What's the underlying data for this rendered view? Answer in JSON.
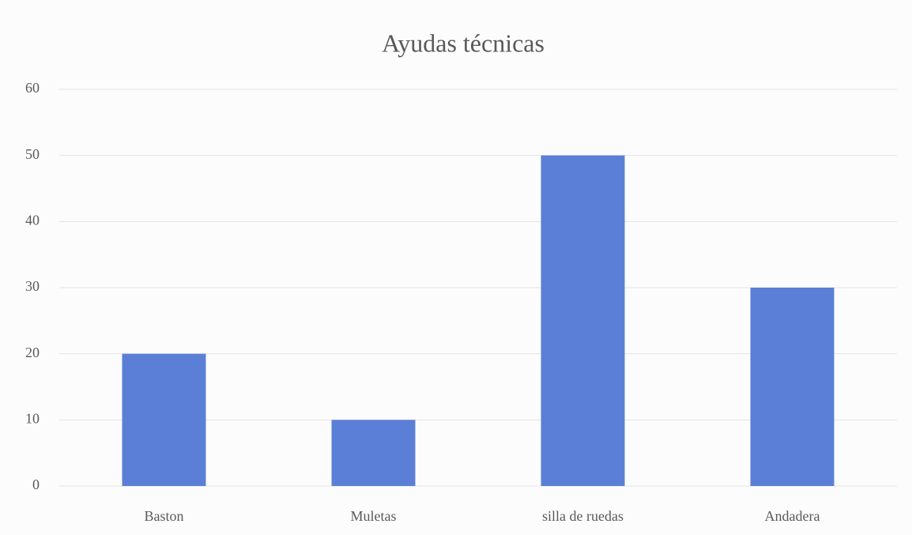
{
  "chart_data": {
    "type": "bar",
    "title": "Ayudas técnicas",
    "categories": [
      "Baston",
      "Muletas",
      "silla de ruedas",
      "Andadera"
    ],
    "values": [
      20,
      10,
      50,
      30
    ],
    "color": "#5b7fd6",
    "ylim": [
      0,
      60
    ],
    "yticks": [
      0,
      10,
      20,
      30,
      40,
      50,
      60
    ],
    "grid": true
  }
}
